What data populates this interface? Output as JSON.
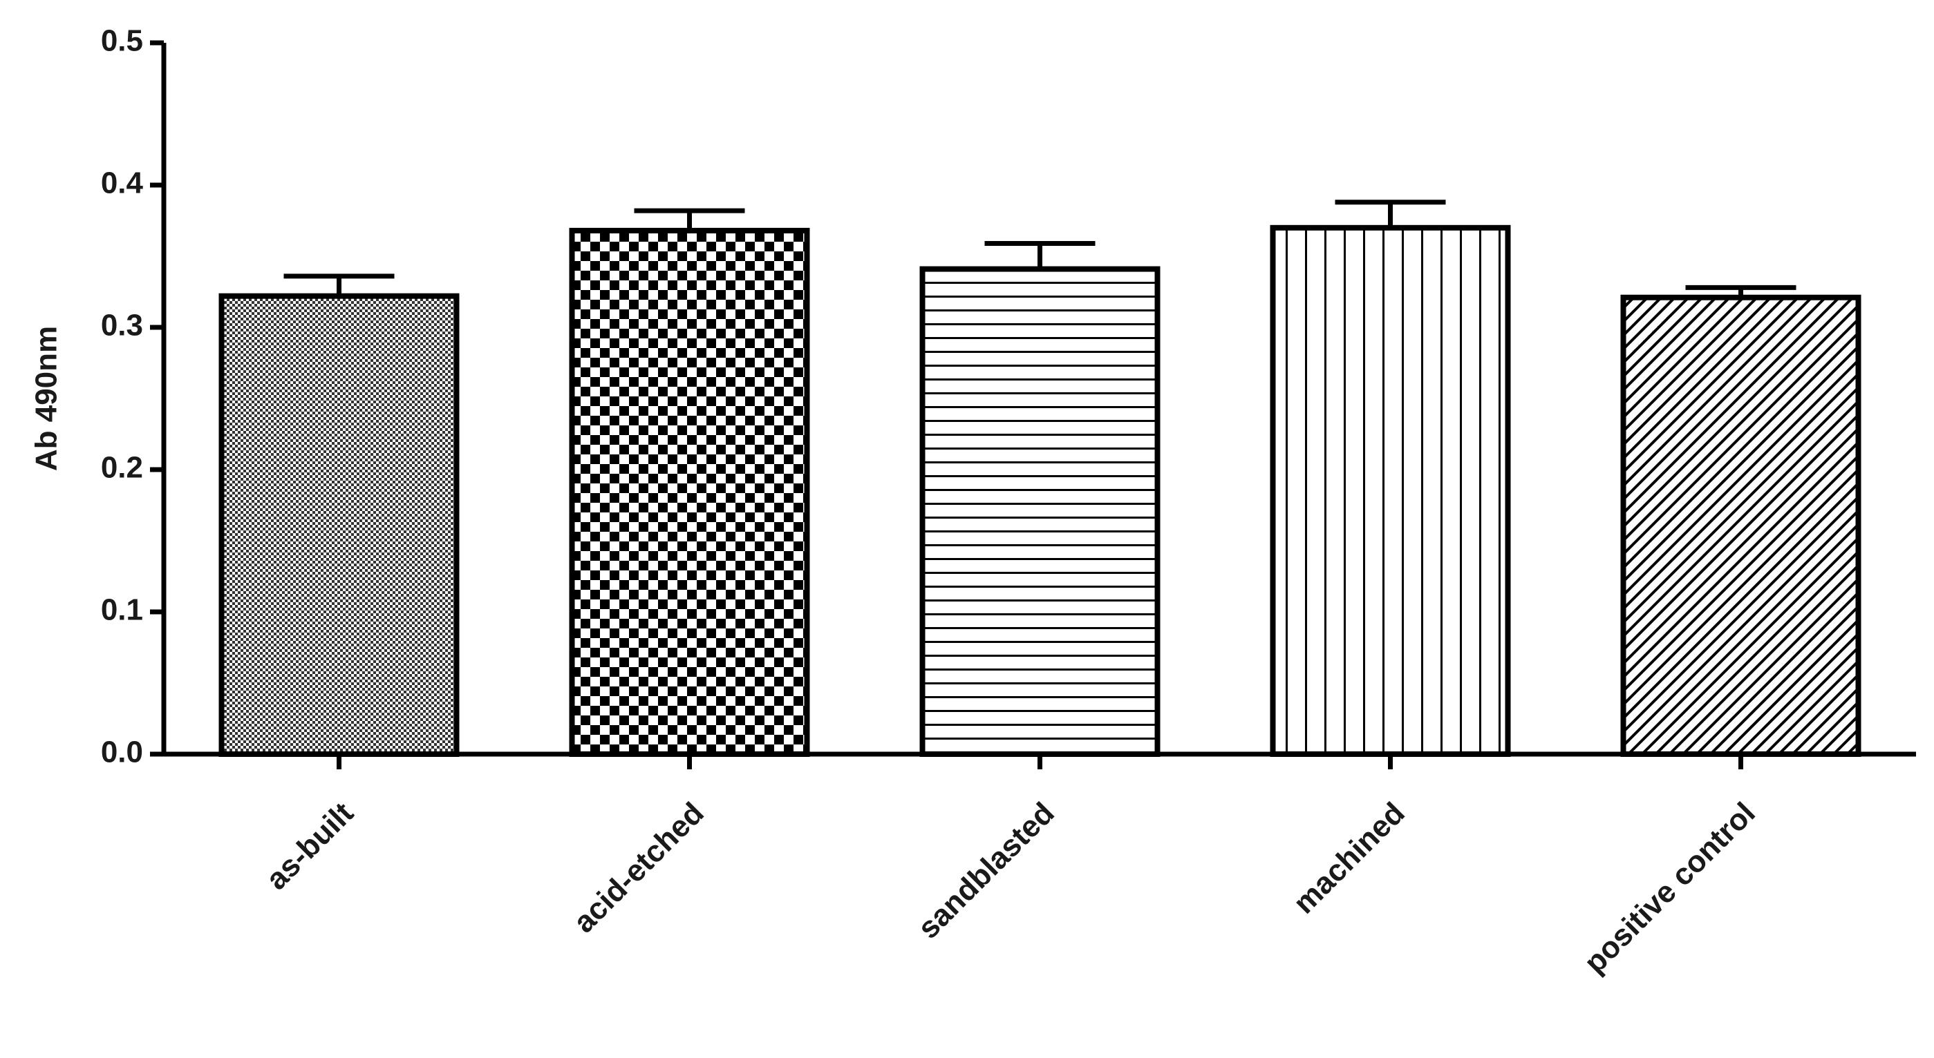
{
  "chart_data": {
    "type": "bar",
    "y_label": "Ab 490nm",
    "categories": [
      "as-built",
      "acid-etched",
      "sandblasted",
      "machined",
      "positive control"
    ],
    "values": [
      0.322,
      0.368,
      0.341,
      0.37,
      0.321
    ],
    "errors": [
      0.014,
      0.014,
      0.018,
      0.018,
      0.007
    ],
    "color": "#000000",
    "ylim": [
      0,
      0.5
    ],
    "yticks": [
      {
        "value": 0,
        "label": "0.0"
      },
      0.1,
      0.2,
      0.3,
      0.4,
      0.5
    ]
  }
}
